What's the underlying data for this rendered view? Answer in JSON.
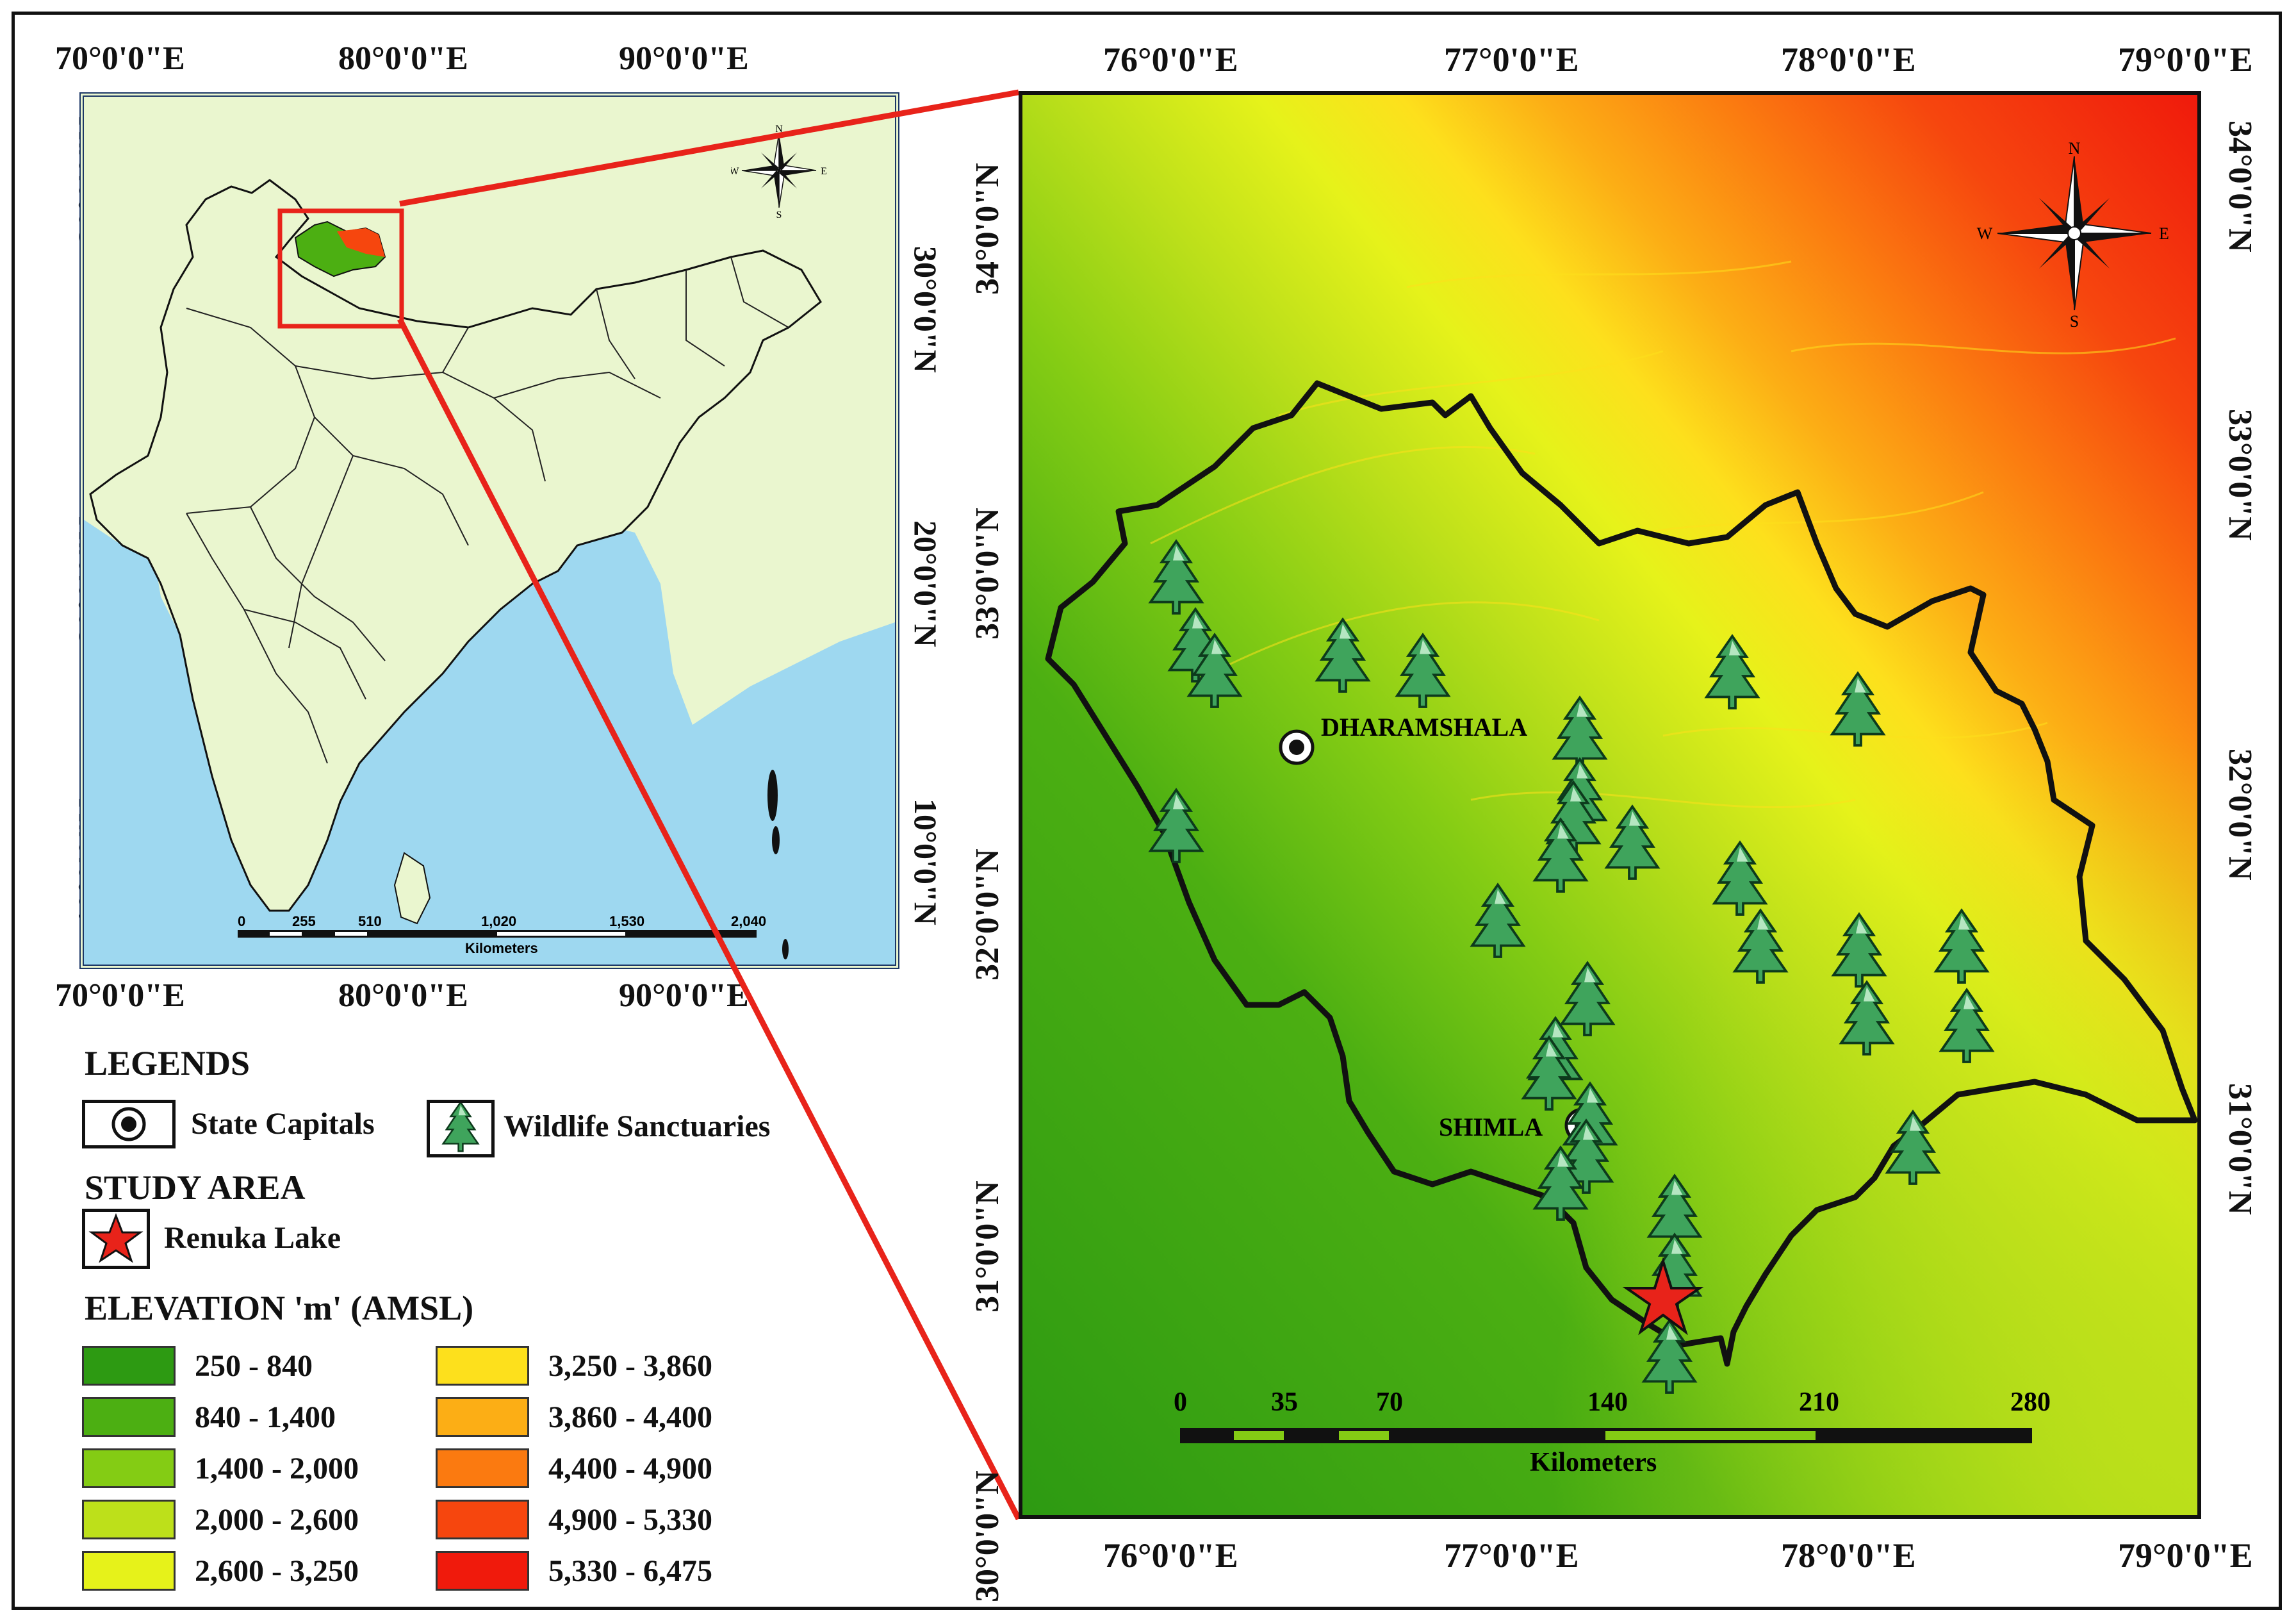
{
  "inset_map": {
    "top_lon_labels": [
      "70°0'0\"E",
      "80°0'0\"E",
      "90°0'0\"E"
    ],
    "bottom_lon_labels": [
      "70°0'0\"E",
      "80°0'0\"E",
      "90°0'0\"E"
    ],
    "left_lat_labels": [
      "30°0'0\"N",
      "20°0'0\"N",
      "10°0'0\"N"
    ],
    "right_lat_labels": [
      "30°0'0\"N",
      "20°0'0\"N",
      "10°0'0\"N"
    ],
    "scale_bar": {
      "ticks": [
        "0",
        "255",
        "510",
        "1,020",
        "1,530",
        "2,040"
      ],
      "unit": "Kilometers"
    },
    "north_arrow": {
      "n": "N",
      "s": "S",
      "e": "E",
      "w": "W"
    },
    "colors": {
      "land": "#eaf6cf",
      "sea": "#9ed8f0",
      "highlight": "#e8231a"
    }
  },
  "main_map": {
    "top_lon_labels": [
      "76°0'0\"E",
      "77°0'0\"E",
      "78°0'0\"E",
      "79°0'0\"E"
    ],
    "bottom_lon_labels": [
      "76°0'0\"E",
      "77°0'0\"E",
      "78°0'0\"E",
      "79°0'0\"E"
    ],
    "left_lat_labels": [
      "34°0'0\"N",
      "33°0'0\"N",
      "32°0'0\"N",
      "31°0'0\"N",
      "30°0'0\"N"
    ],
    "right_lat_labels": [
      "34°0'0\"N",
      "33°0'0\"N",
      "32°0'0\"N",
      "31°0'0\"N"
    ],
    "places": [
      {
        "name": "DHARAMSHALA",
        "type": "state-capital"
      },
      {
        "name": "SHIMLA",
        "type": "state-capital"
      }
    ],
    "study_area_marker": "Renuka Lake",
    "scale_bar": {
      "ticks": [
        "0",
        "35",
        "70",
        "140",
        "210",
        "280"
      ],
      "unit": "Kilometers"
    },
    "north_arrow": {
      "n": "N",
      "s": "S",
      "e": "E",
      "w": "W"
    }
  },
  "legend": {
    "title": "LEGENDS",
    "state_capitals_label": "State Capitals",
    "wildlife_label": "Wildlife Sanctuaries",
    "study_area_title": "STUDY AREA",
    "study_area_label": "Renuka Lake",
    "elevation_title": "ELEVATION 'm' (AMSL)",
    "elevation_classes": [
      {
        "label": "250 - 840",
        "color": "#2d9a12"
      },
      {
        "label": "840 - 1,400",
        "color": "#4caf12"
      },
      {
        "label": "1,400 - 2,000",
        "color": "#84cc14"
      },
      {
        "label": "2,000 - 2,600",
        "color": "#bde01a"
      },
      {
        "label": "2,600 - 3,250",
        "color": "#e6f21a"
      },
      {
        "label": "3,250 - 3,860",
        "color": "#fde01c"
      },
      {
        "label": "3,860 - 4,400",
        "color": "#fcae15"
      },
      {
        "label": "4,400 - 4,900",
        "color": "#fb7a10"
      },
      {
        "label": "4,900 - 5,330",
        "color": "#f6460e"
      },
      {
        "label": "5,330 - 6,475",
        "color": "#f01a0c"
      }
    ]
  }
}
